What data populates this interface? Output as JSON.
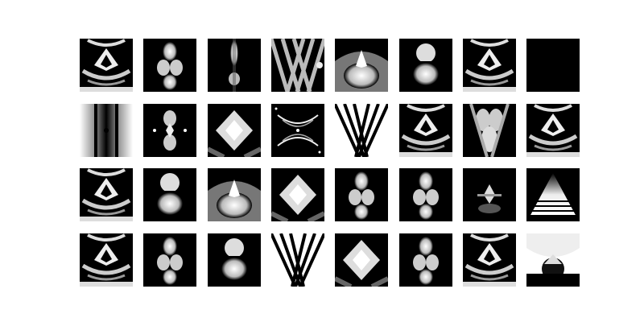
{
  "figure": {
    "background": "#ffffff",
    "grid": {
      "rows": 4,
      "columns": 8
    },
    "tiles": [
      {
        "pattern": "diamond-chevrons"
      },
      {
        "pattern": "twin-lobes"
      },
      {
        "pattern": "vertical-beam"
      },
      {
        "pattern": "lattice"
      },
      {
        "pattern": "arch-glow"
      },
      {
        "pattern": "split-orb"
      },
      {
        "pattern": "diamond-chevrons"
      },
      {
        "pattern": "blank"
      },
      {
        "pattern": "vertical-bars"
      },
      {
        "pattern": "starburst"
      },
      {
        "pattern": "diamond"
      },
      {
        "pattern": "sparse-arcs"
      },
      {
        "pattern": "x-stripes"
      },
      {
        "pattern": "diamond-chevrons"
      },
      {
        "pattern": "lattice-soft"
      },
      {
        "pattern": "diamond-chevrons"
      },
      {
        "pattern": "diamond-chevrons"
      },
      {
        "pattern": "split-orb"
      },
      {
        "pattern": "arch-glow"
      },
      {
        "pattern": "diamond"
      },
      {
        "pattern": "twin-lobes"
      },
      {
        "pattern": "twin-lobes"
      },
      {
        "pattern": "small-cross"
      },
      {
        "pattern": "horizontal-lines"
      },
      {
        "pattern": "diamond-chevrons"
      },
      {
        "pattern": "twin-lobes"
      },
      {
        "pattern": "split-orb"
      },
      {
        "pattern": "x-stripes"
      },
      {
        "pattern": "diamond"
      },
      {
        "pattern": "twin-lobes"
      },
      {
        "pattern": "diamond-chevrons"
      },
      {
        "pattern": "arch-glow-light"
      }
    ]
  }
}
